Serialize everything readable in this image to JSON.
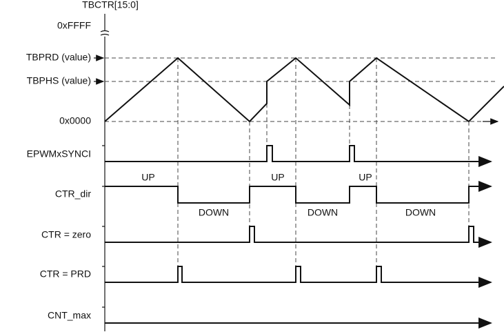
{
  "axis_title": "TBCTR[15:0]",
  "levels": [
    "0xFFFF",
    "TBPRD (value)",
    "TBPHS (value)",
    "0x0000"
  ],
  "signals": [
    "EPWMxSYNCI",
    "CTR_dir",
    "CTR = zero",
    "CTR = PRD",
    "CNT_max"
  ],
  "direction_labels": [
    "UP",
    "DOWN",
    "UP",
    "DOWN",
    "UP",
    "DOWN"
  ]
}
